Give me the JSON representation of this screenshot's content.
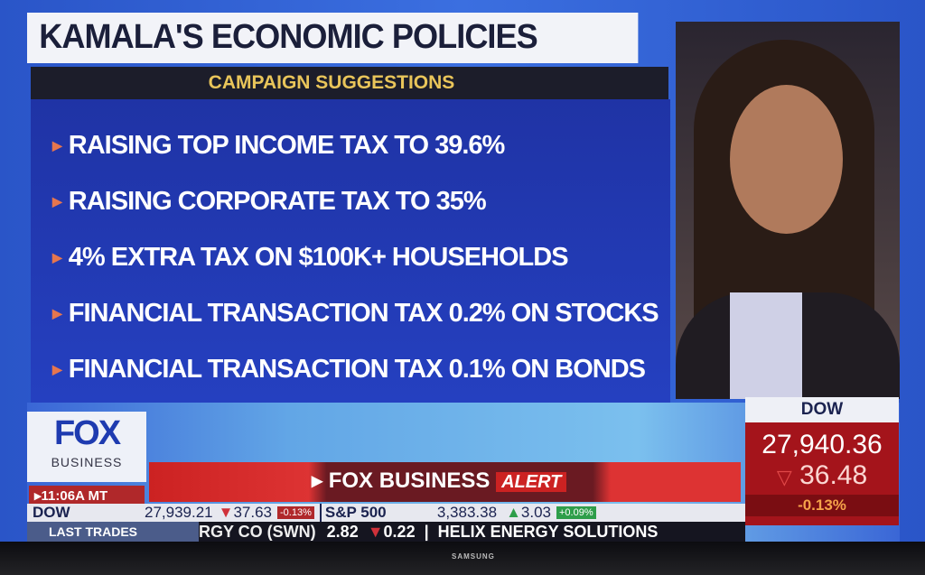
{
  "headline": {
    "title": "KAMALA'S ECONOMIC POLICIES",
    "subtitle": "CAMPAIGN SUGGESTIONS",
    "items": [
      "RAISING TOP INCOME TAX TO 39.6%",
      "RAISING CORPORATE TAX TO 35%",
      "4% EXTRA TAX ON $100K+ HOUSEHOLDS",
      "FINANCIAL TRANSACTION TAX 0.2% ON STOCKS",
      "FINANCIAL TRANSACTION TAX 0.1% ON BONDS"
    ]
  },
  "network": {
    "logo": "FOX",
    "logo_sub": "BUSINESS",
    "time": "11:06A MT",
    "alert_brand": "FOX BUSINESS",
    "alert_label": "ALERT"
  },
  "ticker": {
    "row1_label": "DOW",
    "dow_value": "27,939.21",
    "dow_change": "37.63",
    "dow_pct": "-0.13%",
    "sp_label": "S&P 500",
    "sp_value": "3,383.38",
    "sp_change": "3.03",
    "sp_pct": "+0.09%",
    "row2_label": "LAST TRADES",
    "stock1": "RGY CO (SWN)",
    "stock1_price": "2.82",
    "stock1_change": "0.22",
    "stock2": "HELIX ENERGY SOLUTIONS"
  },
  "dow_box": {
    "label": "DOW",
    "value": "27,940.36",
    "change": "36.48",
    "pct": "-0.13%"
  },
  "tv_brand": "SAMSUNG",
  "colors": {
    "panel_blue": "#2540c0",
    "alert_red": "#c22222",
    "subtitle_gold": "#e9c55a"
  }
}
